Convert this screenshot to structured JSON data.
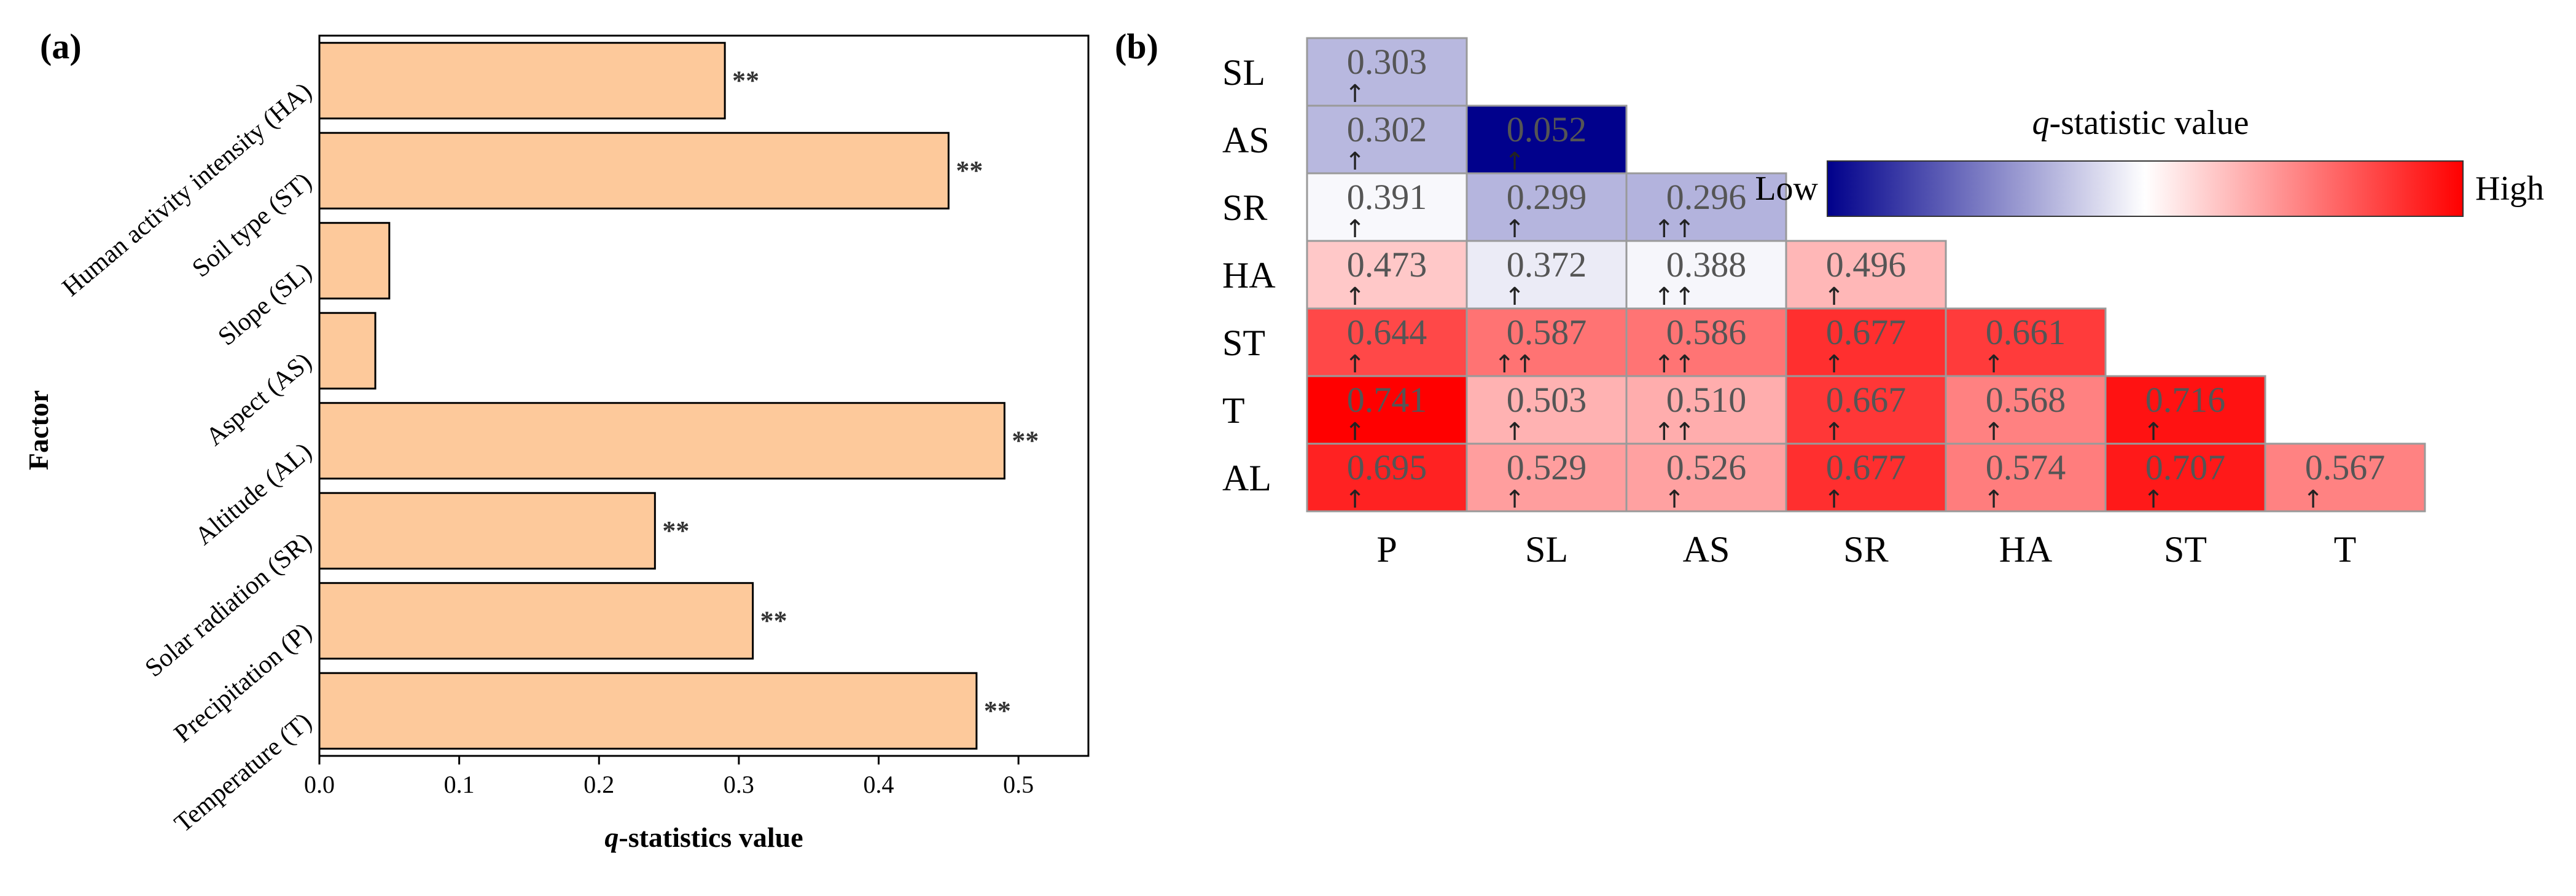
{
  "chart_data": [
    {
      "type": "bar",
      "orientation": "horizontal",
      "panel_label": "(a)",
      "xlabel_prefix": "q",
      "xlabel_suffix": "-statistics value",
      "ylabel": "Factor",
      "xlim": [
        0,
        0.55
      ],
      "xticks": [
        "0.0",
        "0.1",
        "0.2",
        "0.3",
        "0.4",
        "0.5"
      ],
      "xtick_values": [
        0,
        0.1,
        0.2,
        0.3,
        0.4,
        0.5
      ],
      "categories": [
        "Human activity intensity (HA)",
        "Soil type (ST)",
        "Slope (SL)",
        "Aspect (AS)",
        "Altitude (AL)",
        "Solar radiation (SR)",
        "Precipitation (P)",
        "Temperature (T)"
      ],
      "values": [
        0.29,
        0.45,
        0.05,
        0.04,
        0.49,
        0.24,
        0.31,
        0.47
      ],
      "significance": [
        "**",
        "**",
        "",
        "",
        "**",
        "**",
        "**",
        "**"
      ],
      "bar_color": "#FDC99B"
    },
    {
      "type": "heatmap",
      "panel_label": "(b)",
      "rows": [
        "SL",
        "AS",
        "SR",
        "HA",
        "ST",
        "T",
        "AL"
      ],
      "cols": [
        "P",
        "SL",
        "AS",
        "SR",
        "HA",
        "ST",
        "T"
      ],
      "values": [
        [
          0.303
        ],
        [
          0.302,
          0.052
        ],
        [
          0.391,
          0.299,
          0.296
        ],
        [
          0.473,
          0.372,
          0.388,
          0.496
        ],
        [
          0.644,
          0.587,
          0.586,
          0.677,
          0.661
        ],
        [
          0.741,
          0.503,
          0.51,
          0.667,
          0.568,
          0.716
        ],
        [
          0.695,
          0.529,
          0.526,
          0.677,
          0.574,
          0.707,
          0.567
        ]
      ],
      "labels": [
        [
          "0.303"
        ],
        [
          "0.302",
          "0.052"
        ],
        [
          "0.391",
          "0.299",
          "0.296"
        ],
        [
          "0.473",
          "0.372",
          "0.388",
          "0.496"
        ],
        [
          "0.644",
          "0.587",
          "0.586",
          "0.677",
          "0.661"
        ],
        [
          "0.741",
          "0.503",
          "0.510",
          "0.667",
          "0.568",
          "0.716"
        ],
        [
          "0.695",
          "0.529",
          "0.526",
          "0.677",
          "0.574",
          "0.707",
          "0.567"
        ]
      ],
      "arrows": [
        [
          "↑"
        ],
        [
          "↑",
          "↑"
        ],
        [
          "↑",
          "↑",
          "↑↑"
        ],
        [
          "↑",
          "↑",
          "↑↑",
          "↑"
        ],
        [
          "↑",
          "↑↑",
          "↑↑",
          "↑",
          "↑"
        ],
        [
          "↑",
          "↑",
          "↑↑",
          "↑",
          "↑",
          "↑"
        ],
        [
          "↑",
          "↑",
          "↑",
          "↑",
          "↑",
          "↑",
          "↑"
        ]
      ],
      "legend": {
        "title_prefix": "q",
        "title_suffix": "-statistic value",
        "low": "Low",
        "high": "High"
      },
      "colors": {
        "low": "#00008B",
        "mid": "#FFFFFF",
        "high": "#FF0000"
      }
    }
  ]
}
